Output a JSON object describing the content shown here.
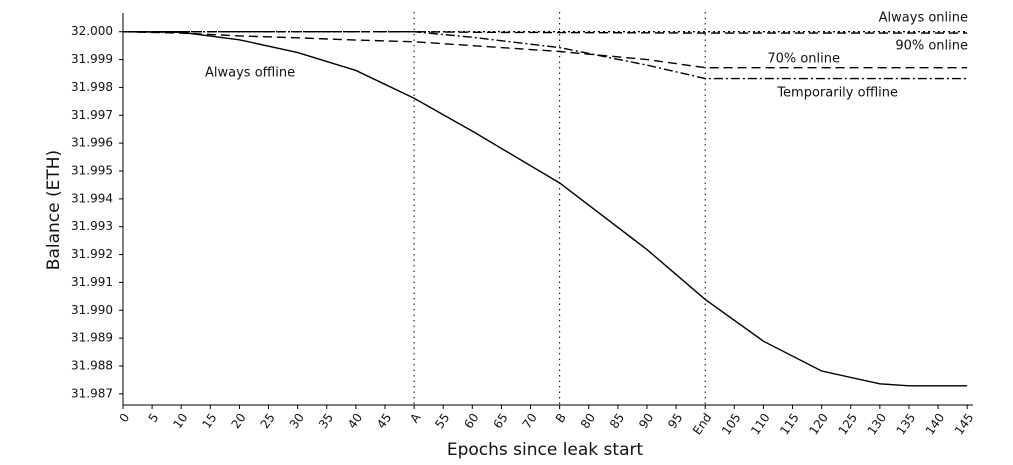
{
  "chart_data": {
    "type": "line",
    "x_label": "Epochs since leak start",
    "y_label": "Balance (ETH)",
    "x": [
      0,
      10,
      20,
      30,
      40,
      50,
      60,
      75,
      90,
      100,
      110,
      120,
      130,
      135,
      145
    ],
    "series": [
      {
        "name": "Always online",
        "color": "#000000",
        "dash": "dotted",
        "values": [
          32.0,
          32.0,
          32.0,
          32.0,
          32.0,
          32.0,
          32.0,
          32.0,
          32.0,
          32.0,
          32.0,
          32.0,
          32.0,
          32.0,
          32.0
        ]
      },
      {
        "name": "90% online",
        "color": "#000000",
        "dash": "dashed",
        "values": [
          32.0,
          32.0,
          32.0,
          32.0,
          32.0,
          32.0,
          31.99998,
          31.99997,
          31.99996,
          31.99995,
          31.99995,
          31.99995,
          31.99995,
          31.99995,
          31.99995
        ]
      },
      {
        "name": "70% online",
        "color": "#000000",
        "dash": "dashed",
        "values": [
          32.0,
          31.99995,
          31.99985,
          31.99978,
          31.9997,
          31.99964,
          31.9995,
          31.99929,
          31.999,
          31.99871,
          31.99871,
          31.99871,
          31.99871,
          31.99871,
          31.99871
        ]
      },
      {
        "name": "Temporarily offline",
        "color": "#000000",
        "dash": "dashdot",
        "values": [
          32.0,
          32.0,
          32.0,
          32.0,
          32.0,
          32.0,
          31.9998,
          31.99943,
          31.9988,
          31.99832,
          31.99832,
          31.99832,
          31.99832,
          31.99832,
          31.99832
        ]
      },
      {
        "name": "Always offline",
        "color": "#000000",
        "dash": "solid",
        "values": [
          32.0,
          31.99998,
          31.99971,
          31.99925,
          31.99861,
          31.99761,
          31.99643,
          31.99457,
          31.99218,
          31.99039,
          31.98889,
          31.98782,
          31.98736,
          31.98729,
          31.98729
        ]
      }
    ],
    "xlim": [
      0,
      146
    ],
    "ylim": [
      31.9866,
      32.0006
    ],
    "xticks": [
      0,
      5,
      10,
      15,
      20,
      25,
      30,
      35,
      40,
      45,
      {
        "value": 50,
        "label": "A"
      },
      55,
      60,
      65,
      70,
      {
        "value": 75,
        "label": "B"
      },
      80,
      85,
      90,
      95,
      {
        "value": 100,
        "label": "End"
      },
      105,
      110,
      115,
      120,
      125,
      130,
      135,
      140,
      145
    ],
    "yticks": [
      {
        "value": 31.987,
        "label": "31.987"
      },
      {
        "value": 31.988,
        "label": "31.988"
      },
      {
        "value": 31.989,
        "label": "31.989"
      },
      {
        "value": 31.99,
        "label": "31.990"
      },
      {
        "value": 31.991,
        "label": "31.991"
      },
      {
        "value": 31.992,
        "label": "31.992"
      },
      {
        "value": 31.993,
        "label": "31.993"
      },
      {
        "value": 31.994,
        "label": "31.994"
      },
      {
        "value": 31.995,
        "label": "31.995"
      },
      {
        "value": 31.996,
        "label": "31.996"
      },
      {
        "value": 31.997,
        "label": "31.997"
      },
      {
        "value": 31.998,
        "label": "31.998"
      },
      {
        "value": 31.999,
        "label": "31.999"
      },
      {
        "value": 32.0,
        "label": "32.000"
      }
    ],
    "grid": false
  }
}
